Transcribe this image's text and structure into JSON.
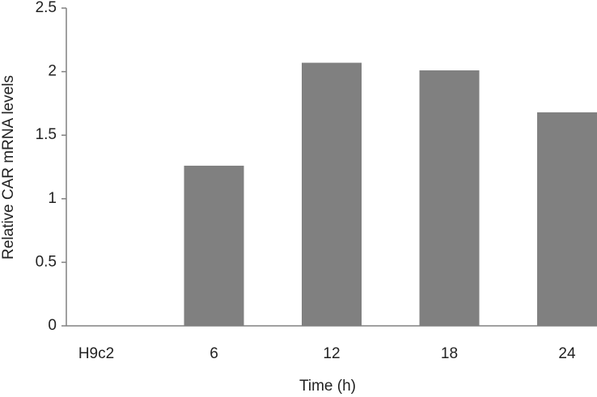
{
  "chart_data": {
    "type": "bar",
    "x_label": "Time (h)",
    "y_label": "Relative CAR mRNA levels",
    "categories": [
      "H9c2",
      "6",
      "12",
      "18",
      "24"
    ],
    "values": [
      0,
      1.26,
      2.07,
      2.01,
      1.68
    ],
    "color": "#808080",
    "ylim": [
      0,
      2.5
    ],
    "yticks": [
      0,
      0.5,
      1,
      1.5,
      2,
      2.5
    ],
    "grid": false
  }
}
